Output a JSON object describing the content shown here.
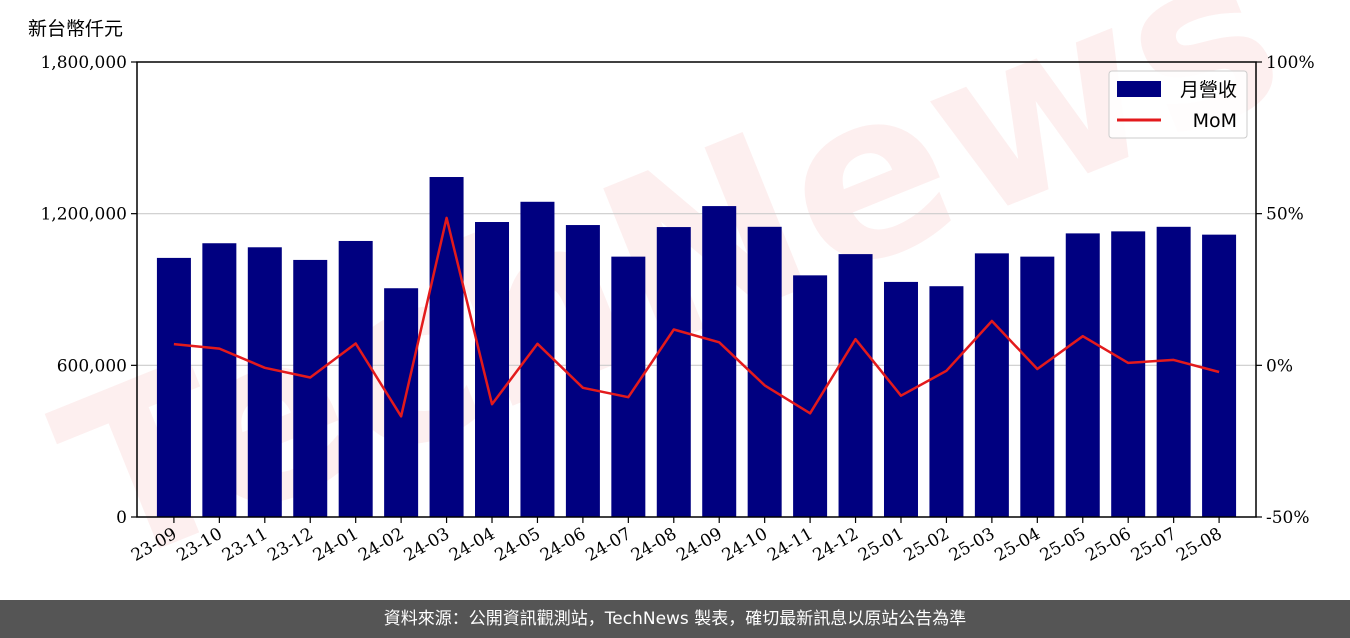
{
  "unit_label": "新台幣仟元",
  "footer_text": "資料來源：公開資訊觀測站，TechNews 製表，確切最新訊息以原站公告為準",
  "watermark_text": "TechNews",
  "colors": {
    "bar": "#000080",
    "line": "#e31a1c",
    "grid": "#cccccc",
    "footer_bg": "#555555",
    "watermark": "#e31a1c"
  },
  "chart_data": {
    "type": "bar",
    "categories": [
      "23-09",
      "23-10",
      "23-11",
      "23-12",
      "24-01",
      "24-02",
      "24-03",
      "24-04",
      "24-05",
      "24-06",
      "24-07",
      "24-08",
      "24-09",
      "24-10",
      "24-11",
      "24-12",
      "25-01",
      "25-02",
      "25-03",
      "25-04",
      "25-05",
      "25-06",
      "25-07",
      "25-08"
    ],
    "series": [
      {
        "name": "月營收",
        "type": "bar",
        "axis": "left",
        "values": [
          1025000,
          1083000,
          1067000,
          1017000,
          1092000,
          905000,
          1345000,
          1167000,
          1247000,
          1155000,
          1030000,
          1147000,
          1230000,
          1148000,
          956000,
          1040000,
          930000,
          913000,
          1043000,
          1030000,
          1122000,
          1130000,
          1148000,
          1117000
        ]
      },
      {
        "name": "MoM",
        "type": "line",
        "axis": "right",
        "values": [
          7.0,
          5.5,
          -0.8,
          -4.0,
          7.2,
          -16.8,
          48.6,
          -12.8,
          7.1,
          -7.4,
          -10.5,
          11.8,
          7.6,
          -6.6,
          -15.8,
          8.6,
          -10.0,
          -1.8,
          14.6,
          -1.2,
          9.6,
          0.8,
          1.8,
          -2.2
        ]
      }
    ],
    "y_left": {
      "ylim": [
        0,
        1800000
      ],
      "ticks": [
        "0",
        "600,000",
        "1,200,000",
        "1,800,000"
      ]
    },
    "y_right": {
      "ylim": [
        -50,
        100
      ],
      "ticks": [
        "-50%",
        "0%",
        "50%",
        "100%"
      ]
    },
    "grid": "horizontal",
    "legend": {
      "position": "top-right",
      "items": [
        "月營收",
        "MoM"
      ]
    }
  }
}
